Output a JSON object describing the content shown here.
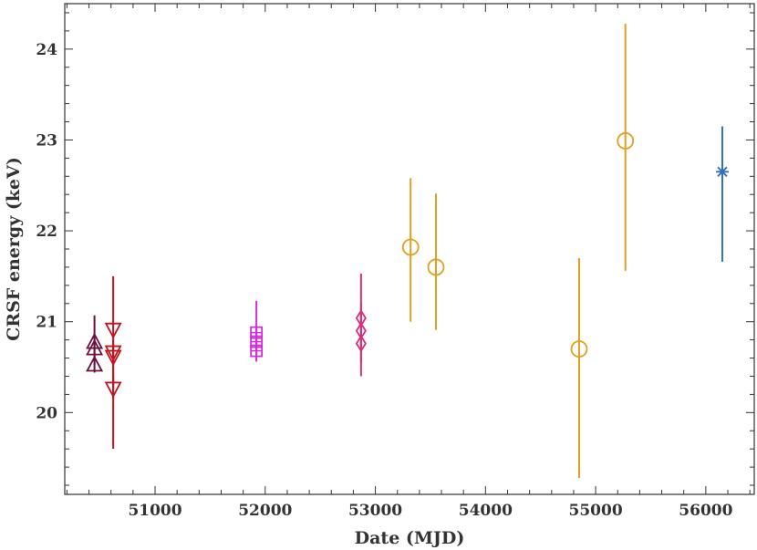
{
  "chart_data": {
    "type": "scatter",
    "xlabel": "Date (MJD)",
    "ylabel": "CRSF energy (keV)",
    "xlim": [
      50180,
      56440
    ],
    "ylim": [
      19.1,
      24.5
    ],
    "x_ticks": [
      51000,
      52000,
      53000,
      54000,
      55000,
      56000
    ],
    "y_ticks": [
      20,
      21,
      22,
      23,
      24
    ],
    "grid": false,
    "legend": "none",
    "series": [
      {
        "marker": "triangle-up",
        "color": "#6b0f3f",
        "points": [
          {
            "x": 50450,
            "y": 20.77,
            "ylo": 20.52,
            "yhi": 21.07
          },
          {
            "x": 50450,
            "y": 20.7,
            "ylo": 20.62,
            "yhi": 20.82
          },
          {
            "x": 50450,
            "y": 20.52,
            "ylo": 20.44,
            "yhi": 20.62
          }
        ]
      },
      {
        "marker": "triangle-down",
        "color": "#c0141e",
        "points": [
          {
            "x": 50620,
            "y": 20.92,
            "ylo": 20.3,
            "yhi": 21.5
          },
          {
            "x": 50620,
            "y": 20.67,
            "ylo": 20.55,
            "yhi": 20.8
          },
          {
            "x": 50620,
            "y": 20.62,
            "ylo": 19.6,
            "yhi": 20.75
          },
          {
            "x": 50620,
            "y": 20.27,
            "ylo": 20.15,
            "yhi": 20.4
          }
        ]
      },
      {
        "marker": "square-plus",
        "color": "#d12fd6",
        "points": [
          {
            "x": 51920,
            "y": 20.88,
            "ylo": 20.75,
            "yhi": 21.23
          },
          {
            "x": 51920,
            "y": 20.78,
            "ylo": 20.56,
            "yhi": 20.92
          },
          {
            "x": 51920,
            "y": 20.68,
            "ylo": 20.58,
            "yhi": 20.8
          }
        ]
      },
      {
        "marker": "diamond",
        "color": "#d62f7c",
        "points": [
          {
            "x": 52870,
            "y": 21.04,
            "ylo": 20.7,
            "yhi": 21.53
          },
          {
            "x": 52870,
            "y": 20.9,
            "ylo": 20.55,
            "yhi": 21.2
          },
          {
            "x": 52870,
            "y": 20.76,
            "ylo": 20.4,
            "yhi": 21.1
          }
        ]
      },
      {
        "marker": "circle",
        "color": "#e0a020",
        "points": [
          {
            "x": 53320,
            "y": 21.82,
            "ylo": 21.0,
            "yhi": 22.58
          },
          {
            "x": 53550,
            "y": 21.6,
            "ylo": 20.91,
            "yhi": 22.41
          },
          {
            "x": 54850,
            "y": 20.7,
            "ylo": 19.28,
            "yhi": 21.7
          },
          {
            "x": 55270,
            "y": 22.99,
            "ylo": 21.56,
            "yhi": 24.28
          }
        ]
      },
      {
        "marker": "asterisk",
        "color": "#2f6fc0",
        "points": [
          {
            "x": 56150,
            "y": 22.65,
            "ylo": 21.66,
            "yhi": 23.15
          }
        ]
      }
    ]
  }
}
